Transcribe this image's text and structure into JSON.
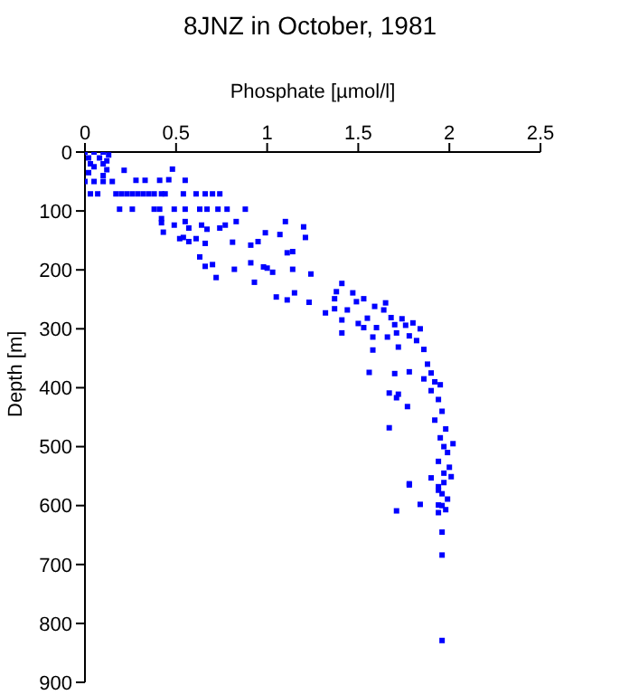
{
  "chart_data": {
    "type": "scatter",
    "title": "8JNZ in October, 1981",
    "xlabel": "Phosphate [µmol/l]",
    "ylabel": "Depth [m]",
    "xlim": [
      0,
      2.5
    ],
    "xticks": [
      0,
      0.5,
      1,
      1.5,
      2,
      2.5
    ],
    "ylim": [
      900,
      0
    ],
    "yticks": [
      0,
      100,
      200,
      300,
      400,
      500,
      600,
      700,
      800,
      900
    ],
    "grid": false,
    "legend": false,
    "marker": "square",
    "series": [
      {
        "color": "#0000ff",
        "x": [
          0,
          0.05,
          0.1,
          0.13,
          0.02,
          0.08,
          0.12,
          0.03,
          0.1,
          0.05,
          0.12,
          0.02,
          0.1,
          0,
          0.05,
          0.1,
          0.15,
          0.215,
          0.28,
          0.33,
          0.41,
          0.46,
          0.48,
          0.55,
          0.03,
          0.07,
          0.17,
          0.2,
          0.23,
          0.26,
          0.29,
          0.32,
          0.35,
          0.38,
          0.42,
          0.44,
          0.54,
          0.61,
          0.66,
          0.7,
          0.74,
          0.19,
          0.26,
          0.38,
          0.41,
          0.49,
          0.55,
          0.63,
          0.67,
          0.73,
          0.78,
          0.88,
          0.42,
          0.42,
          0.49,
          0.55,
          0.57,
          0.54,
          0.57,
          0.52,
          0.64,
          0.67,
          0.74,
          0.77,
          0.83,
          0.66,
          0.43,
          0.61,
          0.63,
          0.66,
          0.7,
          0.72,
          0.81,
          0.82,
          0.91,
          0.95,
          0.91,
          0.93,
          0.98,
          1.0,
          1.03,
          0.99,
          1.1,
          1.07,
          1.2,
          1.21,
          1.14,
          1.11,
          1.14,
          1.05,
          1.11,
          1.15,
          1.23,
          1.24,
          1.41,
          1.38,
          1.37,
          1.37,
          1.32,
          1.44,
          1.41,
          1.41,
          1.47,
          1.49,
          1.53,
          1.59,
          1.5,
          1.53,
          1.55,
          1.6,
          1.65,
          1.64,
          1.68,
          1.7,
          1.71,
          1.74,
          1.76,
          1.78,
          1.58,
          1.66,
          1.72,
          1.58,
          1.56,
          1.7,
          1.78,
          1.67,
          1.72,
          1.71,
          1.77,
          1.67,
          1.78,
          1.8,
          1.84,
          1.82,
          1.86,
          1.88,
          1.9,
          1.86,
          1.92,
          1.95,
          1.9,
          1.94,
          1.96,
          1.92,
          1.98,
          1.95,
          2.02,
          1.97,
          1.99,
          1.94,
          2.0,
          1.97,
          1.78,
          1.9,
          2.01,
          1.97,
          1.94,
          1.94,
          1.96,
          1.99,
          1.84,
          1.71,
          1.94,
          1.96,
          1.98,
          1.94,
          1.96,
          1.96,
          1.96
        ],
        "values": [
          0,
          0,
          0,
          5,
          10,
          10,
          15,
          20,
          20,
          25,
          30,
          35,
          40,
          50,
          50,
          50,
          50,
          31,
          48,
          48,
          48,
          47,
          29,
          48,
          71,
          71,
          71,
          71,
          71,
          71,
          71,
          71,
          71,
          71,
          71,
          71,
          71,
          71,
          71,
          71,
          71,
          97,
          97,
          97,
          97,
          97,
          97,
          97,
          97,
          97,
          97,
          97,
          113,
          120,
          124,
          118,
          129,
          145,
          152,
          147,
          124,
          131,
          129,
          124,
          118,
          155,
          136,
          147,
          178,
          194,
          191,
          213,
          153,
          199,
          158,
          152,
          188,
          221,
          195,
          197,
          204,
          137,
          118,
          140,
          127,
          145,
          169,
          171,
          199,
          246,
          251,
          239,
          255,
          207,
          223,
          237,
          249,
          266,
          273,
          268,
          285,
          307,
          239,
          254,
          249,
          262,
          291,
          298,
          282,
          298,
          256,
          268,
          281,
          293,
          307,
          283,
          294,
          312,
          314,
          314,
          331,
          336,
          374,
          376,
          373,
          409,
          411,
          417,
          432,
          468,
          565,
          290,
          300,
          320,
          335,
          360,
          375,
          385,
          390,
          395,
          405,
          420,
          440,
          455,
          470,
          485,
          495,
          500,
          510,
          525,
          535,
          545,
          563,
          553,
          551,
          561,
          568,
          574,
          580,
          589,
          598,
          609,
          599,
          600,
          607,
          612,
          645,
          684,
          829
        ]
      }
    ]
  }
}
